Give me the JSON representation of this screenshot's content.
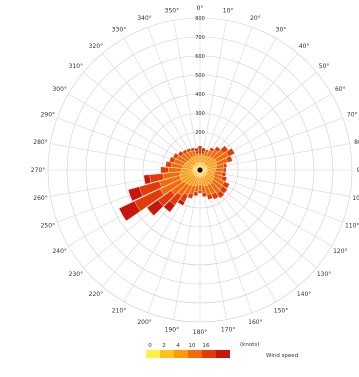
{
  "chart_data": {
    "type": "wind-rose",
    "angle_labels": [
      "0°",
      "10°",
      "20°",
      "30°",
      "40°",
      "50°",
      "60°",
      "70°",
      "80°",
      "90°",
      "100°",
      "110°",
      "120°",
      "130°",
      "140°",
      "150°",
      "160°",
      "170°",
      "180°",
      "190°",
      "200°",
      "210°",
      "220°",
      "230°",
      "240°",
      "250°",
      "260°",
      "270°",
      "280°",
      "290°",
      "300°",
      "310°",
      "320°",
      "330°",
      "340°",
      "350°"
    ],
    "radial_ticks": [
      100,
      200,
      300,
      400,
      500,
      600,
      700,
      800
    ],
    "radial_max": 800,
    "speed_bins": [
      "0–2",
      "2–4",
      "4–6",
      "6–10",
      "10–16",
      ">16"
    ],
    "bin_colors": [
      "#FFF04A",
      "#FFC21A",
      "#FF9A0A",
      "#F46A08",
      "#E23B08",
      "#C8160E"
    ],
    "directions": [
      0,
      10,
      20,
      30,
      40,
      50,
      60,
      70,
      80,
      90,
      100,
      110,
      120,
      130,
      140,
      150,
      160,
      170,
      180,
      190,
      200,
      210,
      220,
      230,
      240,
      250,
      260,
      270,
      280,
      290,
      300,
      310,
      320,
      330,
      340,
      350
    ],
    "counts_by_bin": [
      [
        12,
        12,
        12,
        12,
        12,
        12,
        12,
        12,
        12,
        12,
        12,
        12,
        12,
        12,
        12,
        12,
        12,
        12,
        12,
        12,
        12,
        12,
        12,
        12,
        12,
        12,
        12,
        12,
        12,
        12,
        12,
        12,
        12,
        12,
        12,
        12
      ],
      [
        25,
        25,
        25,
        25,
        25,
        25,
        25,
        25,
        25,
        25,
        25,
        25,
        25,
        25,
        25,
        25,
        25,
        25,
        25,
        25,
        25,
        25,
        25,
        25,
        25,
        25,
        25,
        25,
        25,
        25,
        25,
        25,
        25,
        25,
        25,
        25
      ],
      [
        40,
        40,
        40,
        45,
        50,
        55,
        60,
        55,
        50,
        45,
        40,
        40,
        45,
        50,
        55,
        50,
        50,
        45,
        40,
        45,
        50,
        55,
        60,
        65,
        75,
        75,
        70,
        60,
        55,
        50,
        45,
        40,
        40,
        40,
        40,
        40
      ],
      [
        30,
        25,
        25,
        35,
        45,
        60,
        70,
        60,
        40,
        40,
        40,
        45,
        60,
        60,
        60,
        55,
        50,
        40,
        30,
        35,
        45,
        55,
        70,
        85,
        120,
        110,
        90,
        70,
        60,
        55,
        55,
        45,
        40,
        35,
        30,
        25
      ],
      [
        20,
        15,
        10,
        15,
        20,
        30,
        35,
        25,
        15,
        15,
        20,
        25,
        30,
        30,
        30,
        30,
        25,
        20,
        15,
        20,
        25,
        40,
        60,
        85,
        150,
        110,
        70,
        40,
        30,
        25,
        20,
        20,
        15,
        15,
        15,
        15
      ],
      [
        0,
        0,
        0,
        0,
        0,
        0,
        0,
        0,
        0,
        0,
        0,
        0,
        0,
        0,
        0,
        0,
        0,
        0,
        0,
        0,
        0,
        20,
        45,
        70,
        90,
        60,
        30,
        0,
        0,
        0,
        0,
        0,
        0,
        0,
        0,
        0
      ]
    ],
    "legend": {
      "unit_label": "(knots)",
      "speed_ticks": [
        "0",
        "2",
        "4",
        "10",
        "16"
      ],
      "title": "Wind speed"
    }
  }
}
